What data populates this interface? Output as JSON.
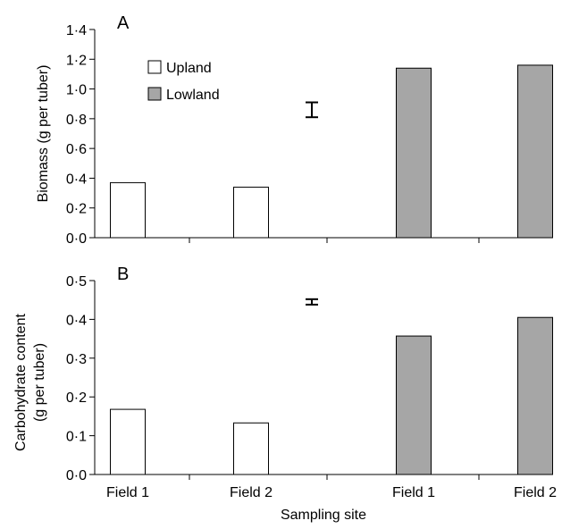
{
  "chart_data": [
    {
      "type": "bar",
      "panel_label": "A",
      "ylabel": "Biomass (g per tuber)",
      "ylim": [
        0,
        1.4
      ],
      "yticks": [
        "0·0",
        "0·2",
        "0·4",
        "0·6",
        "0·8",
        "1·0",
        "1·2",
        "1·4"
      ],
      "categories": [
        "Field 1",
        "Field 2",
        "Field 1",
        "Field 2"
      ],
      "series": [
        {
          "name": "Upland",
          "color": "#ffffff",
          "values": [
            0.37,
            0.34,
            null,
            null
          ]
        },
        {
          "name": "Lowland",
          "color": "#a6a6a6",
          "values": [
            null,
            null,
            1.14,
            1.16
          ]
        }
      ],
      "error_bar": {
        "center": 0.86,
        "half_range": 0.05
      },
      "legend_position": "top-left"
    },
    {
      "type": "bar",
      "panel_label": "B",
      "ylabel": [
        "Carbohydrate content",
        "(g per tuber)"
      ],
      "ylim": [
        0,
        0.5
      ],
      "yticks": [
        "0·0",
        "0·1",
        "0·2",
        "0·3",
        "0·4",
        "0·5"
      ],
      "categories": [
        "Field 1",
        "Field 2",
        "Field 1",
        "Field 2"
      ],
      "series": [
        {
          "name": "Upland",
          "color": "#ffffff",
          "values": [
            0.168,
            0.133,
            null,
            null
          ]
        },
        {
          "name": "Lowland",
          "color": "#a6a6a6",
          "values": [
            null,
            null,
            0.357,
            0.405
          ]
        }
      ],
      "error_bar": {
        "center": 0.445,
        "half_range": 0.007
      }
    }
  ],
  "xlabel": "Sampling site"
}
